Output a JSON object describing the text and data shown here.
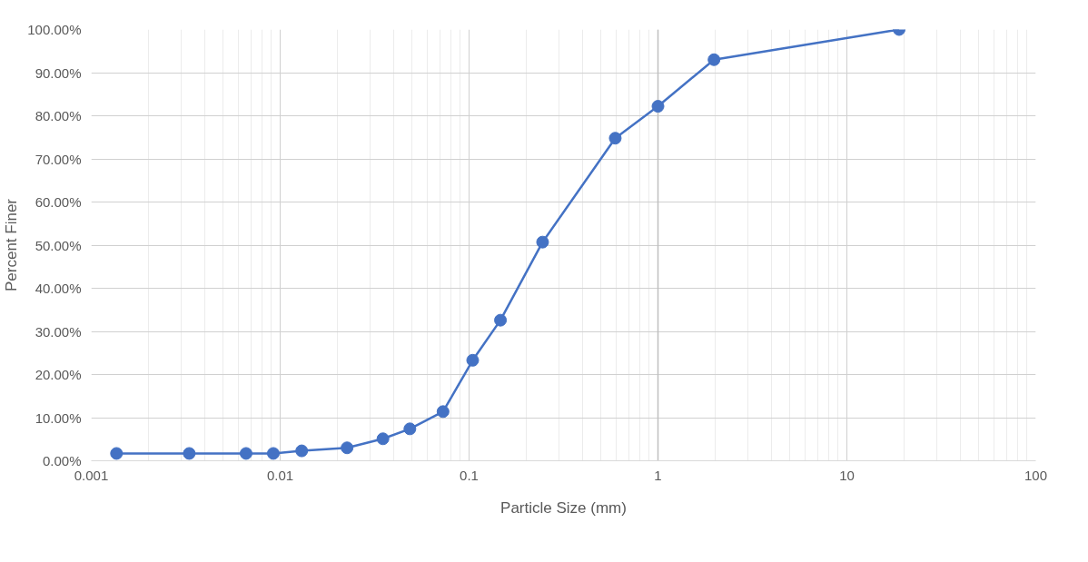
{
  "chart_data": {
    "type": "line",
    "xlabel": "Particle Size (mm)",
    "ylabel": "Percent Finer",
    "log": "x",
    "grid": true,
    "marker": "circle",
    "line_style": "solid",
    "xlim": [
      0.001,
      100
    ],
    "xticks": [
      {
        "value": 0.001,
        "label": "0.001"
      },
      {
        "value": 0.01,
        "label": "0.01"
      },
      {
        "value": 0.1,
        "label": "0.1"
      },
      1,
      10,
      100
    ],
    "ylim": [
      0,
      100
    ],
    "yticks": [
      {
        "value": 0,
        "label": "0.00%"
      },
      {
        "value": 10,
        "label": "10.00%"
      },
      {
        "value": 20,
        "label": "20.00%"
      },
      {
        "value": 30,
        "label": "30.00%"
      },
      {
        "value": 40,
        "label": "40.00%"
      },
      {
        "value": 50,
        "label": "50.00%"
      },
      {
        "value": 60,
        "label": "60.00%"
      },
      {
        "value": 70,
        "label": "70.00%"
      },
      {
        "value": 80,
        "label": "80.00%"
      },
      {
        "value": 90,
        "label": "90.00%"
      },
      {
        "value": 100,
        "label": "100.00%"
      }
    ],
    "ref_lines": [
      {
        "axis": "x",
        "value": 1,
        "color": "#bfbfbf"
      }
    ],
    "x": [
      0.00136,
      0.0033,
      0.0066,
      0.0092,
      0.013,
      0.0226,
      0.035,
      0.0486,
      0.0728,
      0.1045,
      0.1466,
      0.245,
      0.594,
      1.0,
      1.98,
      18.9
    ],
    "series": [
      {
        "color": "#4472c4",
        "values": [
          1.7,
          1.7,
          1.7,
          1.7,
          2.3,
          3.0,
          5.1,
          7.4,
          11.4,
          23.3,
          32.6,
          50.7,
          74.8,
          82.2,
          93.0,
          100
        ]
      }
    ]
  }
}
